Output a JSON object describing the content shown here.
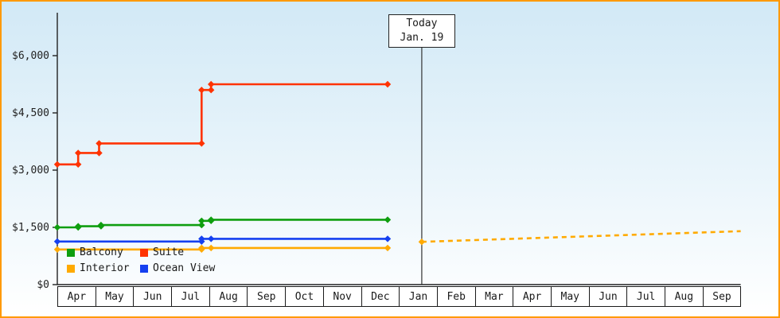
{
  "window": {
    "border_color": "#ff9900",
    "background_top": "#d2e9f6",
    "background_bottom": "#ffffff"
  },
  "today_marker": {
    "line1": "Today",
    "line2": "Jan. 19",
    "t": 9.6
  },
  "legend": {
    "items": [
      {
        "label": "Balcony",
        "color": "#0f9e0f"
      },
      {
        "label": "Suite",
        "color": "#ff3300"
      },
      {
        "label": "Interior",
        "color": "#ffaa00"
      },
      {
        "label": "Ocean View",
        "color": "#1540f0"
      }
    ]
  },
  "chart_data": {
    "type": "line",
    "title": "",
    "xlabel": "",
    "ylabel": "",
    "ylim": [
      0,
      6600
    ],
    "x_encoding": "month_index_from_first_tick",
    "grid": false,
    "legend_position": "bottom-left-inside",
    "y_ticks": [
      {
        "value": 0,
        "label": "$0"
      },
      {
        "value": 1500,
        "label": "$1,500"
      },
      {
        "value": 3000,
        "label": "$3,000"
      },
      {
        "value": 4500,
        "label": "$4,500"
      },
      {
        "value": 6000,
        "label": "$6,000"
      }
    ],
    "months": [
      "Apr",
      "May",
      "Jun",
      "Jul",
      "Aug",
      "Sep",
      "Oct",
      "Nov",
      "Dec",
      "Jan",
      "Feb",
      "Mar",
      "Apr",
      "May",
      "Jun",
      "Jul",
      "Aug",
      "Sep"
    ],
    "series": [
      {
        "name": "Suite",
        "color": "#ff3300",
        "style": "solid",
        "points": [
          [
            0,
            3150
          ],
          [
            0.55,
            3150
          ],
          [
            0.55,
            3450
          ],
          [
            1.1,
            3450
          ],
          [
            1.1,
            3700
          ],
          [
            3.8,
            3700
          ],
          [
            3.8,
            5100
          ],
          [
            4.05,
            5100
          ],
          [
            4.05,
            5250
          ],
          [
            8.7,
            5250
          ]
        ]
      },
      {
        "name": "Balcony",
        "color": "#0f9e0f",
        "style": "solid",
        "points": [
          [
            0,
            1500
          ],
          [
            0.55,
            1500
          ],
          [
            0.55,
            1530
          ],
          [
            1.15,
            1530
          ],
          [
            1.15,
            1560
          ],
          [
            3.8,
            1560
          ],
          [
            3.8,
            1670
          ],
          [
            4.05,
            1670
          ],
          [
            4.05,
            1700
          ],
          [
            8.7,
            1700
          ]
        ]
      },
      {
        "name": "Ocean View",
        "color": "#1540f0",
        "style": "solid",
        "points": [
          [
            0,
            1130
          ],
          [
            3.8,
            1130
          ],
          [
            3.8,
            1200
          ],
          [
            4.05,
            1200
          ],
          [
            8.7,
            1200
          ]
        ]
      },
      {
        "name": "Interior",
        "color": "#ffaa00",
        "style": "solid",
        "points": [
          [
            0,
            920
          ],
          [
            3.8,
            920
          ],
          [
            3.8,
            960
          ],
          [
            4.05,
            960
          ],
          [
            8.7,
            960
          ]
        ]
      },
      {
        "name": "Interior projected",
        "color": "#ffaa00",
        "style": "dashed",
        "points": [
          [
            9.6,
            1120
          ],
          [
            18,
            1400
          ]
        ],
        "markers": [
          [
            9.6,
            1120
          ]
        ]
      }
    ]
  }
}
